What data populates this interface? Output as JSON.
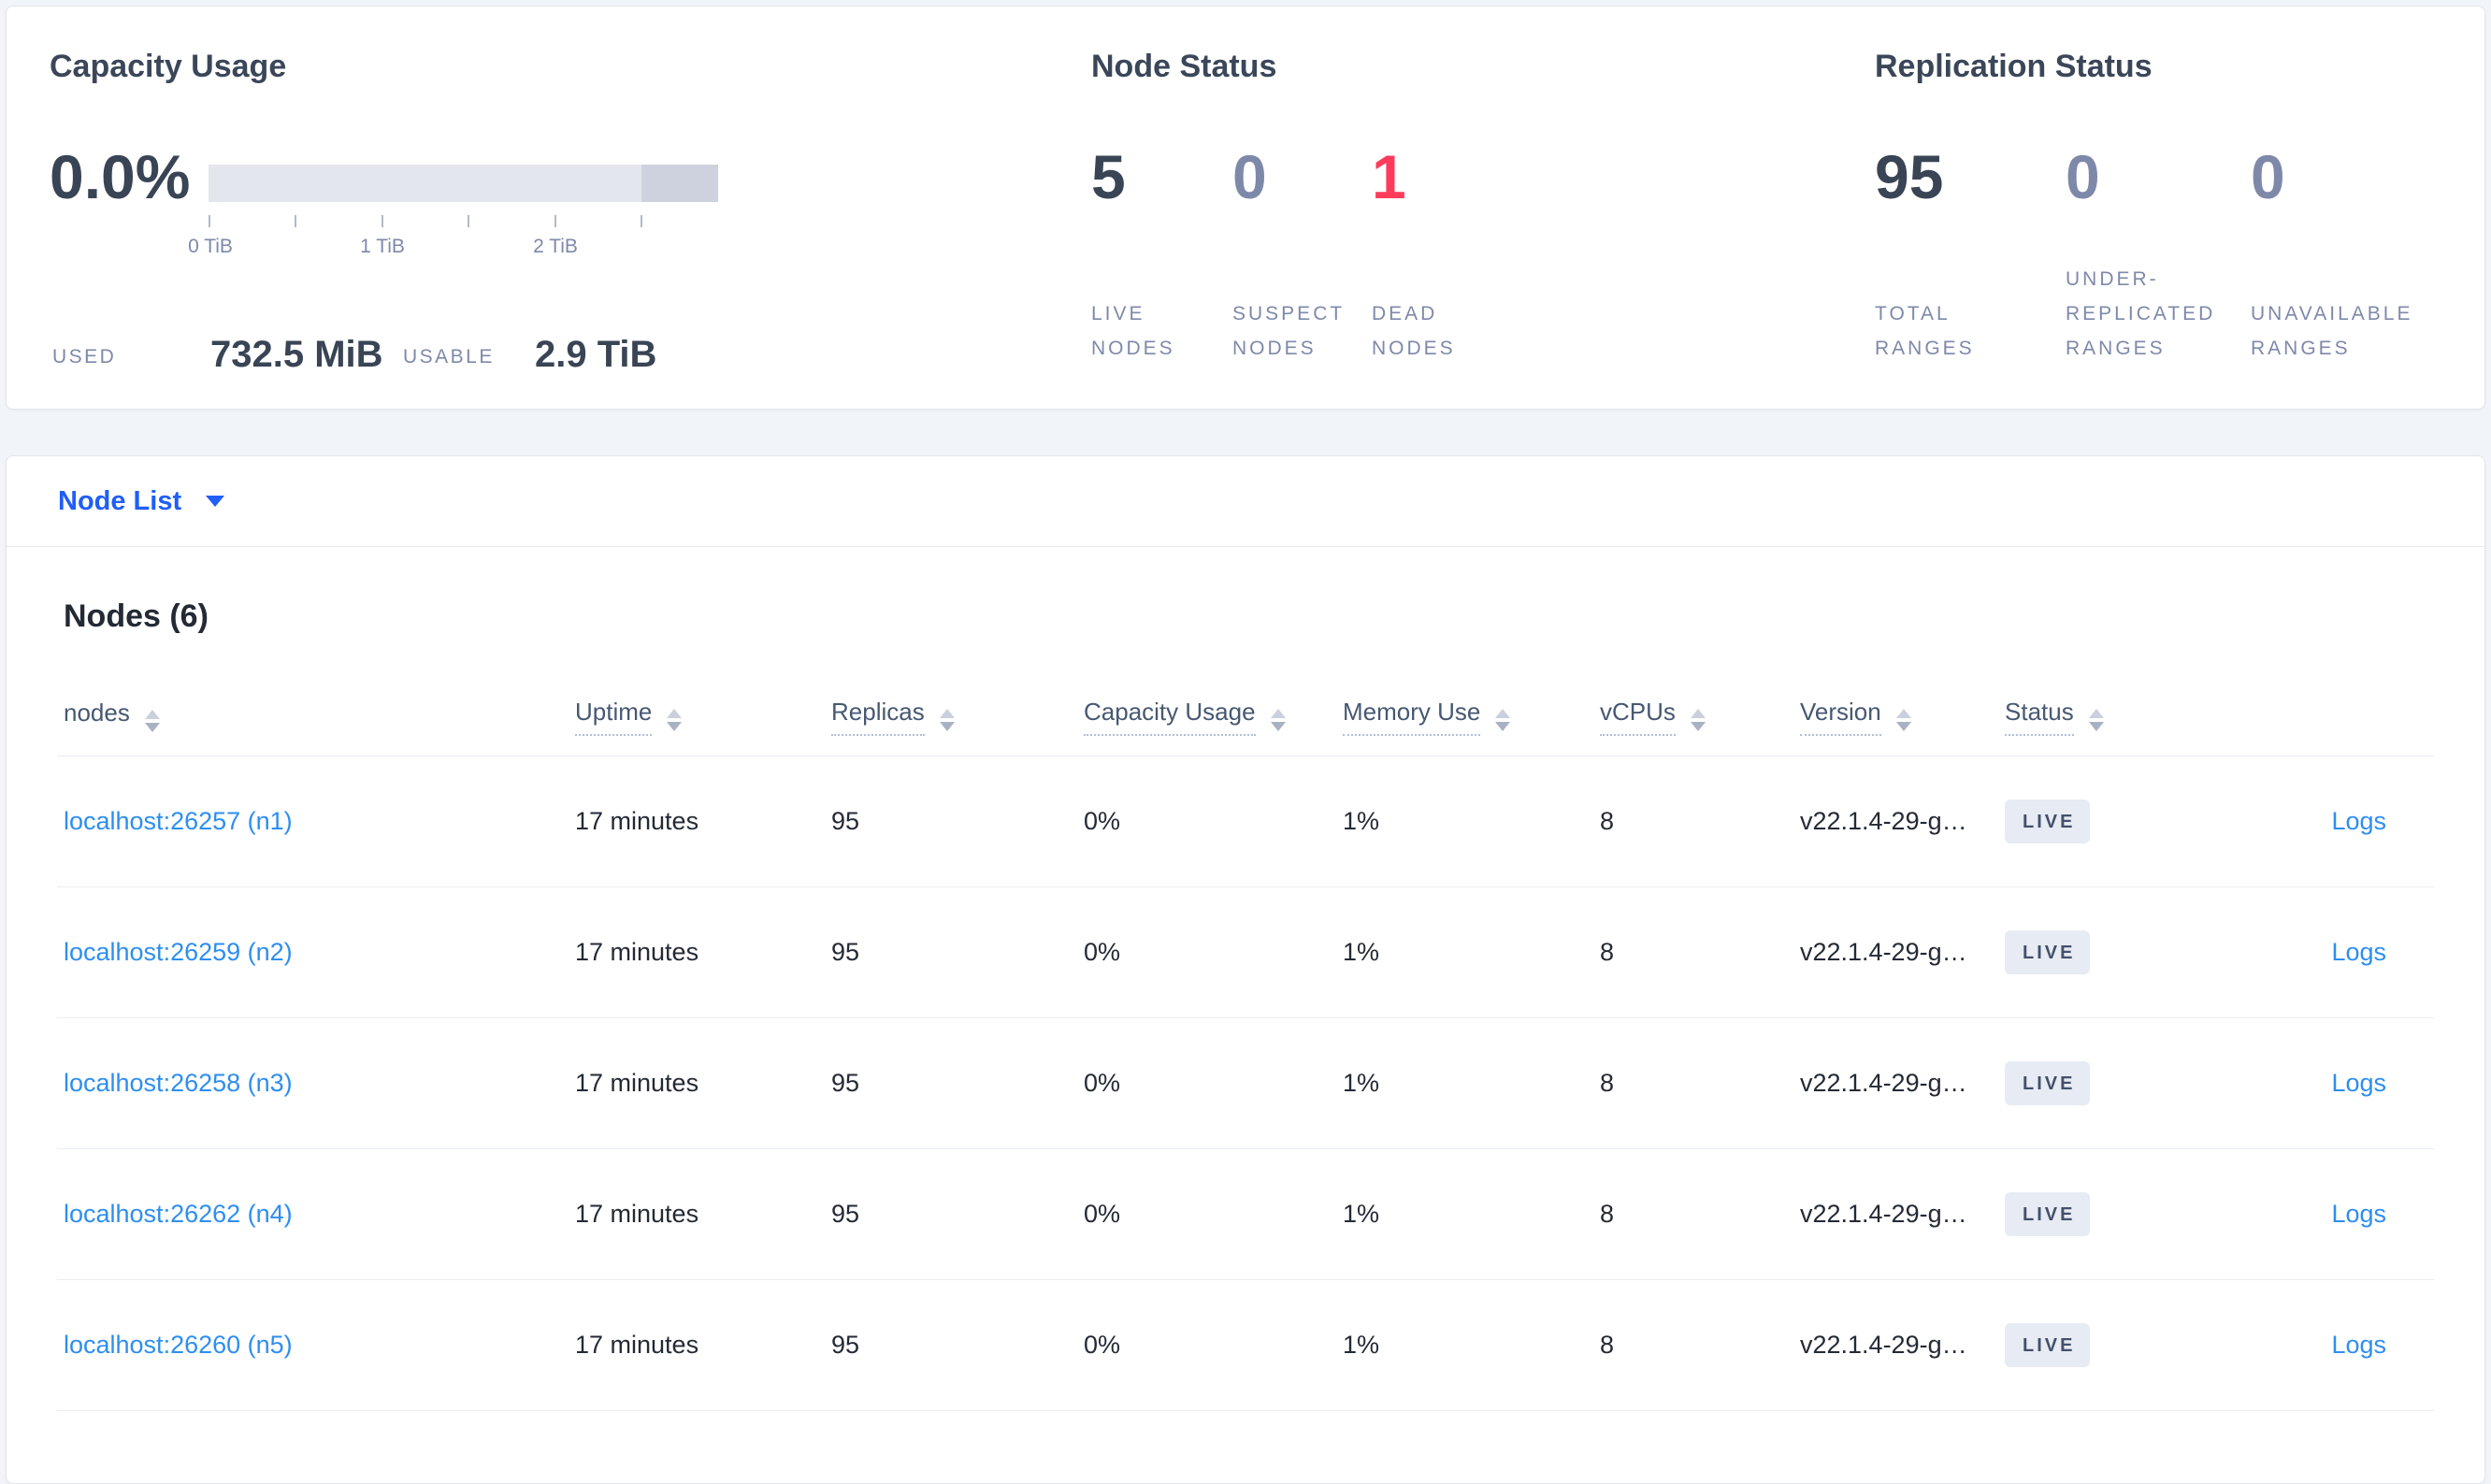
{
  "capacity": {
    "title": "Capacity Usage",
    "percent": "0.0%",
    "tick_labels": [
      "0 TiB",
      "1 TiB",
      "2 TiB"
    ],
    "used_label": "USED",
    "used_value": "732.5 MiB",
    "usable_label": "USABLE",
    "usable_value": "2.9 TiB"
  },
  "node_status": {
    "title": "Node Status",
    "stats": [
      {
        "value": "5",
        "label": "LIVE NODES",
        "tone": "tone-dark"
      },
      {
        "value": "0",
        "label": "SUSPECT NODES",
        "tone": "tone-muted"
      },
      {
        "value": "1",
        "label": "DEAD NODES",
        "tone": "tone-red"
      }
    ]
  },
  "replication_status": {
    "title": "Replication Status",
    "stats": [
      {
        "value": "95",
        "label": "TOTAL RANGES",
        "tone": "tone-dark"
      },
      {
        "value": "0",
        "label": "UNDER-REPLICATED RANGES",
        "tone": "tone-muted"
      },
      {
        "value": "0",
        "label": "UNAVAILABLE RANGES",
        "tone": "tone-muted"
      }
    ]
  },
  "node_list": {
    "selector_label": "Node List",
    "heading": "Nodes (6)",
    "columns": [
      {
        "label": "nodes",
        "style": "plain"
      },
      {
        "label": "Uptime",
        "style": "dotted"
      },
      {
        "label": "Replicas",
        "style": "dotted"
      },
      {
        "label": "Capacity Usage",
        "style": "dotted"
      },
      {
        "label": "Memory Use",
        "style": "dotted"
      },
      {
        "label": "vCPUs",
        "style": "dotted"
      },
      {
        "label": "Version",
        "style": "dotted"
      },
      {
        "label": "Status",
        "style": "dotted"
      }
    ],
    "rows": [
      {
        "address": "localhost:26257 (n1)",
        "uptime": "17 minutes",
        "replicas": "95",
        "capacity": "0%",
        "memory": "1%",
        "vcpus": "8",
        "version": "v22.1.4-29-g…",
        "status": "LIVE",
        "logs": "Logs"
      },
      {
        "address": "localhost:26259 (n2)",
        "uptime": "17 minutes",
        "replicas": "95",
        "capacity": "0%",
        "memory": "1%",
        "vcpus": "8",
        "version": "v22.1.4-29-g…",
        "status": "LIVE",
        "logs": "Logs"
      },
      {
        "address": "localhost:26258 (n3)",
        "uptime": "17 minutes",
        "replicas": "95",
        "capacity": "0%",
        "memory": "1%",
        "vcpus": "8",
        "version": "v22.1.4-29-g…",
        "status": "LIVE",
        "logs": "Logs"
      },
      {
        "address": "localhost:26262 (n4)",
        "uptime": "17 minutes",
        "replicas": "95",
        "capacity": "0%",
        "memory": "1%",
        "vcpus": "8",
        "version": "v22.1.4-29-g…",
        "status": "LIVE",
        "logs": "Logs"
      },
      {
        "address": "localhost:26260 (n5)",
        "uptime": "17 minutes",
        "replicas": "95",
        "capacity": "0%",
        "memory": "1%",
        "vcpus": "8",
        "version": "v22.1.4-29-g…",
        "status": "LIVE",
        "logs": "Logs"
      }
    ]
  },
  "colors": {
    "accent_blue": "#1f5ef7",
    "link_blue": "#2d8ef0",
    "dead_red": "#ff3b5c",
    "dark_slate": "#394455",
    "muted_slate": "#7e89a9",
    "badge_bg": "#e7ebf3"
  }
}
